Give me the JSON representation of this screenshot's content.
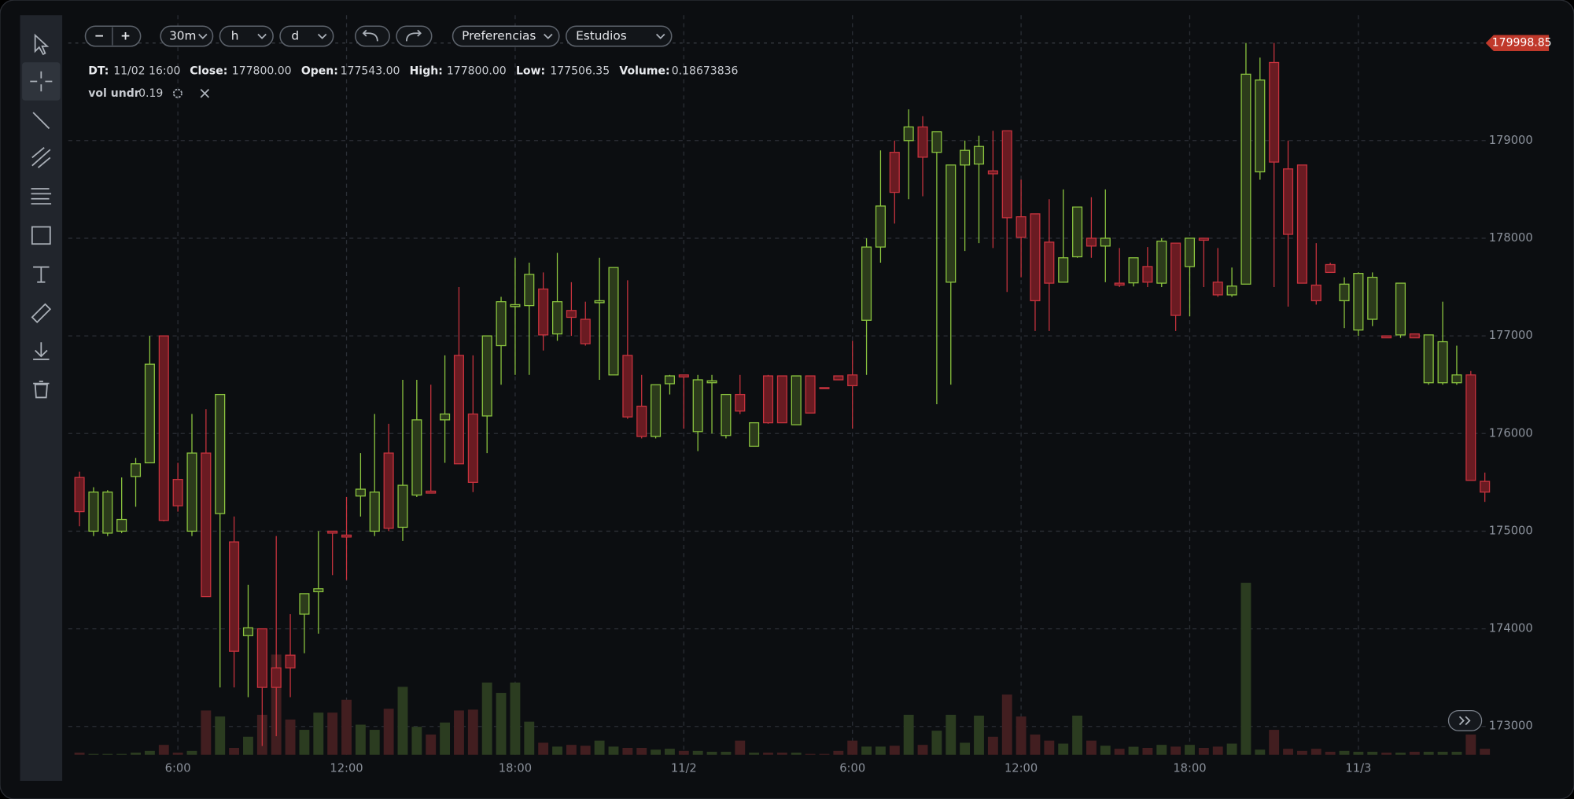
{
  "toolbar": {
    "zoom_out": "−",
    "zoom_in": "+",
    "interval": "30m",
    "unit_h": "h",
    "unit_d": "d",
    "preferences": "Preferencias",
    "studies": "Estudios"
  },
  "info": [
    {
      "label": "DT:",
      "value": "11/02 16:00"
    },
    {
      "label": "Close:",
      "value": "177800.00"
    },
    {
      "label": "Open:",
      "value": "177543.00"
    },
    {
      "label": "High:",
      "value": "177800.00"
    },
    {
      "label": "Low:",
      "value": "177506.35"
    },
    {
      "label": "Volume:",
      "value": "0.18673836"
    }
  ],
  "indicator": {
    "name": "vol undr",
    "value": "0.19"
  },
  "chart_data": {
    "type": "candlestick",
    "up_color": "#8cc63f",
    "up_fill": "#2c3b1b",
    "down_color": "#c8333e",
    "down_fill": "#6a1b22",
    "volume_up_color": "#2b3c20",
    "volume_down_color": "#421e20",
    "grid": true,
    "last_price": 179998.85,
    "last_price_color": "#c0392b",
    "xlim": [
      2.1,
      52.6
    ],
    "xticks": [
      {
        "value": 6,
        "label": "6:00"
      },
      {
        "value": 12,
        "label": "12:00"
      },
      {
        "value": 18,
        "label": "18:00"
      },
      {
        "value": 24,
        "label": "11/2"
      },
      {
        "value": 30,
        "label": "6:00"
      },
      {
        "value": 36,
        "label": "12:00"
      },
      {
        "value": 42,
        "label": "18:00"
      },
      {
        "value": 48,
        "label": "11/3"
      }
    ],
    "ylim": [
      172710,
      180285
    ],
    "yticks": [
      173000,
      174000,
      175000,
      176000,
      177000,
      178000,
      179000
    ],
    "y2lim": [
      0,
      17.2
    ],
    "x": [
      2.5,
      3,
      3.5,
      4,
      4.5,
      5,
      5.5,
      6,
      6.5,
      7,
      7.5,
      8,
      8.5,
      9,
      9.5,
      10,
      10.5,
      11,
      11.5,
      12,
      12.5,
      13,
      13.5,
      14,
      14.5,
      15,
      15.5,
      16,
      16.5,
      17,
      17.5,
      18,
      18.5,
      19,
      19.5,
      20,
      20.5,
      21,
      21.5,
      22,
      22.5,
      23,
      23.5,
      24,
      24.5,
      25,
      25.5,
      26,
      26.5,
      27,
      27.5,
      28,
      28.5,
      29,
      29.5,
      30,
      30.5,
      31,
      31.5,
      32,
      32.5,
      33,
      33.5,
      34,
      34.5,
      35,
      35.5,
      36,
      36.5,
      37,
      37.5,
      38,
      38.5,
      39,
      39.5,
      40,
      40.5,
      41,
      41.5,
      42,
      42.5,
      43,
      43.5,
      44,
      44.5,
      45,
      45.5,
      46,
      46.5,
      47,
      47.5,
      48,
      48.5,
      49,
      49.5,
      50,
      50.5,
      51,
      51.5,
      52,
      52.5
    ],
    "open": [
      175550,
      175000,
      174980,
      175000,
      175560,
      175700,
      177000,
      175530,
      175000,
      175800,
      175180,
      174890,
      173930,
      174000,
      173600,
      173730,
      174150,
      174380,
      175000,
      174960,
      175360,
      175000,
      175800,
      175040,
      175370,
      175410,
      176140,
      176800,
      176200,
      176180,
      176900,
      177300,
      177310,
      177480,
      177020,
      177260,
      177170,
      177340,
      176600,
      176800,
      176280,
      175970,
      176510,
      176600,
      176020,
      176520,
      175980,
      176400,
      175870,
      176590,
      176590,
      176090,
      176590,
      176470,
      176590,
      176600,
      177160,
      177910,
      178880,
      179000,
      179140,
      178880,
      177550,
      178750,
      178760,
      178690,
      179100,
      178220,
      178250,
      177960,
      177550,
      177810,
      178000,
      177920,
      177540,
      177543,
      177710,
      177540,
      177950,
      177710,
      178000,
      177550,
      177420,
      177530,
      178680,
      179800,
      178710,
      178750,
      177520,
      177730,
      177360,
      177060,
      177170,
      177000,
      177010,
      177020,
      176520,
      176520,
      176520,
      176600,
      175510
    ],
    "high": [
      175610,
      175450,
      175420,
      175550,
      175750,
      177000,
      177000,
      175700,
      176200,
      176250,
      176400,
      175150,
      174450,
      174000,
      174950,
      174150,
      174360,
      175000,
      175000,
      175350,
      175800,
      176200,
      176100,
      176550,
      176550,
      176500,
      176800,
      177500,
      176800,
      177000,
      177400,
      177800,
      177750,
      177650,
      177850,
      177550,
      177350,
      177800,
      177700,
      177570,
      176600,
      176500,
      176600,
      176600,
      176600,
      176600,
      176400,
      176600,
      176110,
      176600,
      176590,
      176590,
      176590,
      176470,
      176590,
      176950,
      178000,
      178900,
      179000,
      179320,
      179250,
      179090,
      178750,
      179000,
      179050,
      179100,
      179100,
      178600,
      178250,
      178400,
      178500,
      178320,
      178420,
      178500,
      177900,
      177800,
      177910,
      178000,
      177950,
      178000,
      178000,
      177900,
      177700,
      180000,
      179850,
      180000,
      179000,
      178750,
      177950,
      177750,
      177600,
      177650,
      177650,
      177000,
      177540,
      177020,
      177010,
      177350,
      176900,
      176640,
      175600
    ],
    "low": [
      175050,
      174950,
      174950,
      174980,
      175250,
      175700,
      175100,
      175200,
      174950,
      174330,
      173400,
      173400,
      173300,
      172800,
      172900,
      173300,
      173750,
      173950,
      174550,
      174500,
      175150,
      174950,
      175000,
      174900,
      175350,
      175400,
      175700,
      175700,
      175400,
      175800,
      176500,
      176600,
      176600,
      176850,
      176950,
      177000,
      176900,
      176550,
      176600,
      176150,
      175950,
      175950,
      176400,
      176050,
      175820,
      176000,
      175950,
      176200,
      175870,
      176100,
      176110,
      176090,
      176210,
      176470,
      176550,
      176050,
      176600,
      177750,
      178150,
      178400,
      178430,
      176300,
      176500,
      177870,
      177950,
      177900,
      177450,
      177600,
      177050,
      177050,
      177550,
      177800,
      177800,
      177550,
      177500,
      177506.35,
      177500,
      177500,
      177050,
      177200,
      177500,
      177400,
      177400,
      177530,
      178600,
      177500,
      177300,
      177540,
      177320,
      177650,
      177080,
      177000,
      177100,
      176980,
      176980,
      176980,
      176500,
      176500,
      176500,
      175520,
      175300
    ],
    "close": [
      175200,
      175400,
      175400,
      175120,
      175690,
      176710,
      175110,
      175260,
      175800,
      174330,
      176400,
      173770,
      174010,
      173400,
      173400,
      173600,
      174360,
      174410,
      174980,
      174940,
      175430,
      175400,
      175030,
      175470,
      176140,
      175390,
      176200,
      175690,
      175500,
      177000,
      177350,
      177320,
      177630,
      177010,
      177350,
      177190,
      176920,
      177360,
      177700,
      176170,
      175970,
      176500,
      176590,
      176580,
      176550,
      176540,
      176400,
      176230,
      176110,
      176110,
      176110,
      176590,
      176210,
      176470,
      176550,
      176490,
      177910,
      178330,
      178470,
      179140,
      178830,
      179090,
      178750,
      178900,
      178940,
      178660,
      178210,
      178010,
      177360,
      177540,
      177800,
      178320,
      177920,
      178000,
      177520,
      177800,
      177550,
      177970,
      177210,
      178000,
      177980,
      177420,
      177510,
      179680,
      179620,
      178780,
      178040,
      177540,
      177360,
      177650,
      177530,
      177640,
      177600,
      176980,
      177540,
      176980,
      177010,
      176940,
      176600,
      175520,
      175400
    ],
    "volume": [
      0.05,
      0.02,
      0.02,
      0.02,
      0.05,
      0.09,
      0.23,
      0.05,
      0.09,
      1.03,
      0.89,
      0.16,
      0.42,
      0.93,
      2.33,
      0.82,
      0.58,
      0.98,
      0.98,
      1.28,
      0.7,
      0.58,
      1.07,
      1.58,
      0.65,
      0.47,
      0.75,
      1.03,
      1.05,
      1.68,
      1.44,
      1.68,
      0.77,
      0.28,
      0.19,
      0.23,
      0.21,
      0.33,
      0.19,
      0.16,
      0.16,
      0.12,
      0.14,
      0.09,
      0.09,
      0.07,
      0.07,
      0.33,
      0.05,
      0.05,
      0.05,
      0.05,
      0.02,
      0.02,
      0.09,
      0.33,
      0.19,
      0.19,
      0.21,
      0.93,
      0.23,
      0.56,
      0.93,
      0.28,
      0.91,
      0.42,
      1.4,
      0.89,
      0.47,
      0.33,
      0.26,
      0.91,
      0.33,
      0.21,
      0.14,
      0.18673836,
      0.16,
      0.23,
      0.19,
      0.23,
      0.16,
      0.19,
      0.26,
      4.0,
      0.12,
      0.58,
      0.14,
      0.09,
      0.14,
      0.07,
      0.09,
      0.07,
      0.07,
      0.05,
      0.05,
      0.07,
      0.07,
      0.07,
      0.07,
      0.47,
      0.14
    ]
  }
}
